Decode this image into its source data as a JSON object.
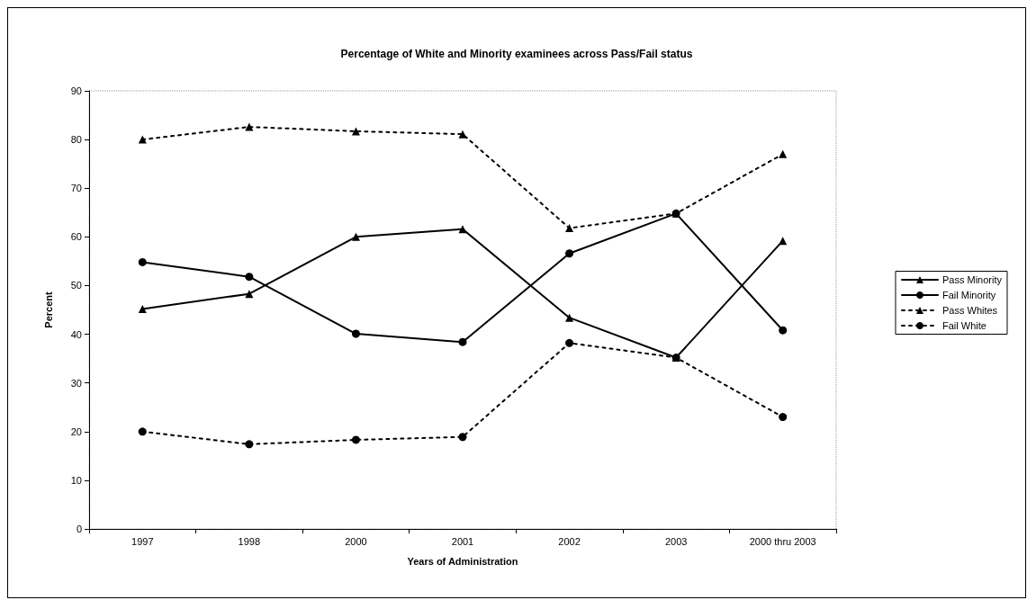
{
  "chart_data": {
    "type": "line",
    "title": "Percentage of White and Minority examinees across Pass/Fail status",
    "xlabel": "Years of Administration",
    "ylabel": "Percent",
    "categories": [
      "1997",
      "1998",
      "2000",
      "2001",
      "2002",
      "2003",
      "2000 thru 2003"
    ],
    "series": [
      {
        "name": "Pass Minority",
        "color": "#000000",
        "marker": "triangle",
        "line_style": "solid",
        "values": [
          45.2,
          48.3,
          60,
          61.6,
          43.4,
          35.2,
          59.2
        ]
      },
      {
        "name": "Fail Minority",
        "color": "#000000",
        "marker": "circle",
        "line_style": "solid",
        "values": [
          54.8,
          51.8,
          40.1,
          38.4,
          56.6,
          64.8,
          40.8
        ]
      },
      {
        "name": "Pass Whites",
        "color": "#000000",
        "marker": "triangle",
        "line_style": "dashed",
        "values": [
          80,
          82.6,
          81.7,
          81.1,
          61.8,
          64.8,
          77
        ]
      },
      {
        "name": "Fail White",
        "color": "#000000",
        "marker": "circle",
        "line_style": "dashed",
        "values": [
          20,
          17.4,
          18.3,
          18.9,
          38.2,
          35.2,
          23
        ]
      }
    ],
    "ylim": [
      0,
      90
    ],
    "yticks": [
      0,
      10,
      20,
      30,
      40,
      50,
      60,
      70,
      80,
      90
    ],
    "grid": false,
    "legend": "right"
  }
}
